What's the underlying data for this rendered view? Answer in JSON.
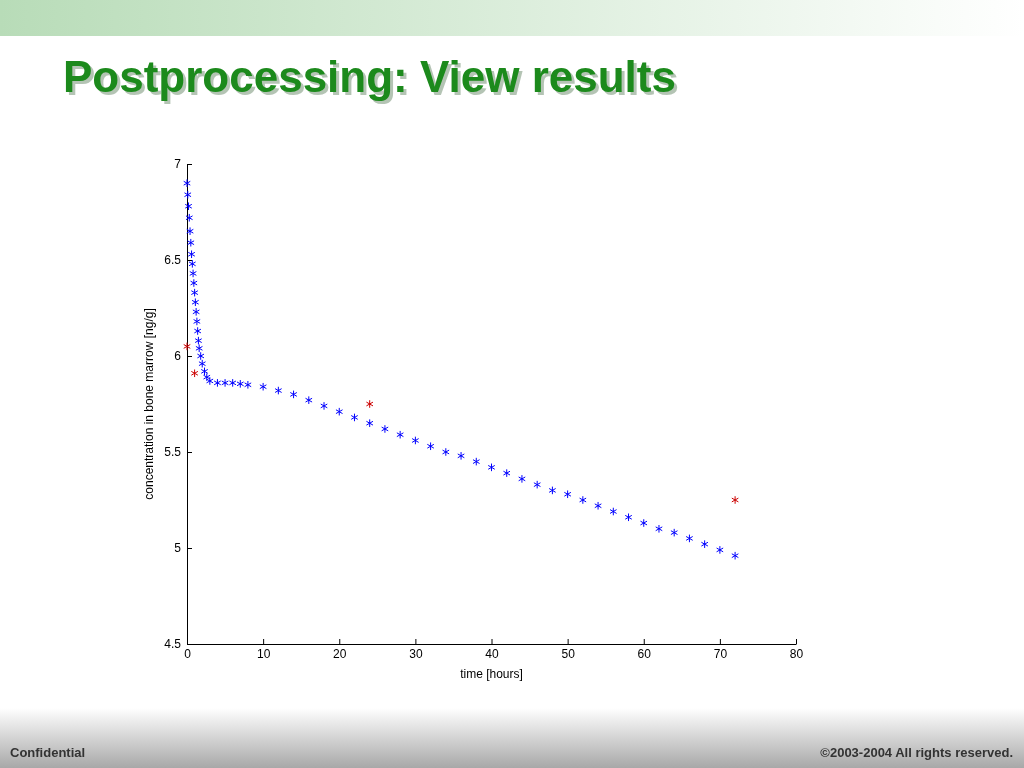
{
  "chart_data": {
    "type": "scatter",
    "title": "Postprocessing: View results",
    "xlabel": "time [hours]",
    "ylabel": "concentration in bone marrow [ng/g]",
    "xlim": [
      0,
      80
    ],
    "xticks": [
      0,
      10,
      20,
      30,
      40,
      50,
      60,
      70,
      80
    ],
    "ylim": [
      4.5,
      7
    ],
    "yticks": [
      4.5,
      5,
      5.5,
      6,
      6.5,
      7
    ],
    "grid": false,
    "marker": "cross",
    "series": [
      {
        "color": "#0000ff",
        "x": [
          0,
          0.1,
          0.2,
          0.3,
          0.4,
          0.5,
          0.6,
          0.7,
          0.8,
          0.9,
          1.0,
          1.1,
          1.2,
          1.3,
          1.4,
          1.5,
          1.6,
          1.8,
          2.0,
          2.3,
          2.6,
          3,
          4,
          5,
          6,
          7,
          8,
          10,
          12,
          14,
          16,
          18,
          20,
          22,
          24,
          26,
          28,
          30,
          32,
          34,
          36,
          38,
          40,
          42,
          44,
          46,
          48,
          50,
          52,
          54,
          56,
          58,
          60,
          62,
          64,
          66,
          68,
          70,
          72
        ],
        "values": [
          6.9,
          6.84,
          6.78,
          6.72,
          6.65,
          6.59,
          6.53,
          6.48,
          6.43,
          6.38,
          6.33,
          6.28,
          6.23,
          6.18,
          6.13,
          6.08,
          6.04,
          6.0,
          5.96,
          5.92,
          5.89,
          5.87,
          5.86,
          5.86,
          5.86,
          5.855,
          5.85,
          5.84,
          5.82,
          5.8,
          5.77,
          5.74,
          5.71,
          5.68,
          5.65,
          5.62,
          5.59,
          5.56,
          5.53,
          5.5,
          5.48,
          5.45,
          5.42,
          5.39,
          5.36,
          5.33,
          5.3,
          5.28,
          5.25,
          5.22,
          5.19,
          5.16,
          5.13,
          5.1,
          5.08,
          5.05,
          5.02,
          4.99,
          4.96
        ]
      },
      {
        "color": "#cc0000",
        "x": [
          0,
          1,
          24,
          72
        ],
        "values": [
          6.05,
          5.91,
          5.75,
          5.25
        ]
      }
    ],
    "annotations": [
      "Confidential",
      "©2003-2004 All rights reserved."
    ]
  }
}
